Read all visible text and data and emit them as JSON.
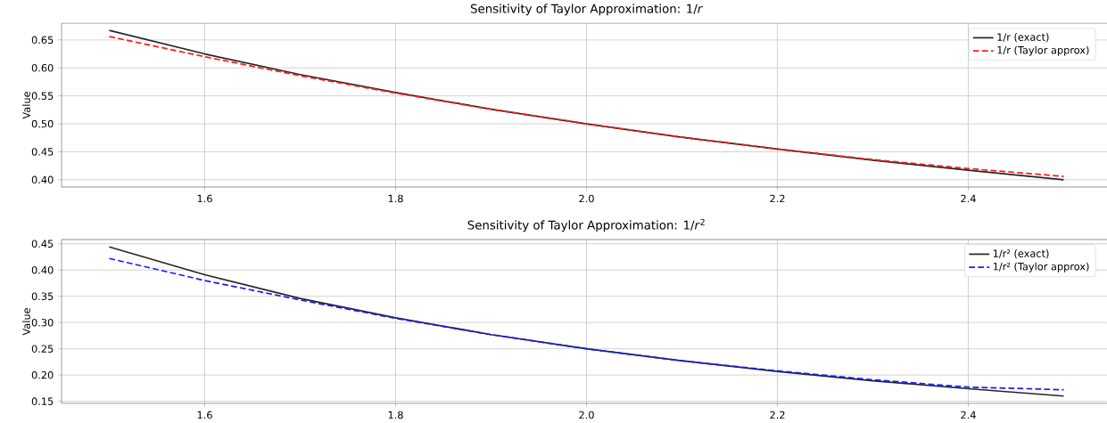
{
  "chart_data": [
    {
      "type": "line",
      "title": "Sensitivity of Taylor Approximation: 1/*r*",
      "ylabel": "Value",
      "x": [
        1.5,
        1.6,
        1.7,
        1.8,
        1.9,
        2.0,
        2.1,
        2.2,
        2.3,
        2.4,
        2.5
      ],
      "series": [
        {
          "name": "1/r (exact)",
          "color": "#262626",
          "line_style": "solid",
          "values": [
            0.667,
            0.625,
            0.588,
            0.556,
            0.526,
            0.5,
            0.476,
            0.455,
            0.435,
            0.417,
            0.4
          ]
        },
        {
          "name": "1/r (Taylor approx)",
          "color": "#ff1a1a",
          "line_style": "dashed",
          "values": [
            0.656,
            0.62,
            0.586,
            0.555,
            0.526,
            0.5,
            0.476,
            0.455,
            0.436,
            0.42,
            0.406
          ]
        }
      ],
      "xlim": [
        1.45,
        2.55
      ],
      "ylim": [
        0.387,
        0.68
      ],
      "xticks": [
        1.6,
        1.8,
        {
          "value": 2.0,
          "label": "2.0"
        },
        2.2,
        2.4
      ],
      "yticks": [
        {
          "value": 0.4,
          "label": "0.40"
        },
        0.45,
        {
          "value": 0.5,
          "label": "0.50"
        },
        0.55,
        {
          "value": 0.6,
          "label": "0.60"
        },
        0.65
      ],
      "grid": true,
      "legend": "top right"
    },
    {
      "type": "line",
      "title": "Sensitivity of Taylor Approximation: 1/*r*$^{2}$",
      "ylabel": "Value",
      "x": [
        1.5,
        1.6,
        1.7,
        1.8,
        1.9,
        2.0,
        2.1,
        2.2,
        2.3,
        2.4,
        2.5
      ],
      "series": [
        {
          "name": "1/r² (exact)",
          "color": "#262626",
          "line_style": "solid",
          "values": [
            0.444,
            0.391,
            0.346,
            0.309,
            0.277,
            0.25,
            0.227,
            0.207,
            0.189,
            0.174,
            0.16
          ]
        },
        {
          "name": "1/r² (Taylor approx)",
          "color": "#1a1aff",
          "line_style": "dashed",
          "values": [
            0.422,
            0.38,
            0.343,
            0.308,
            0.277,
            0.25,
            0.227,
            0.208,
            0.191,
            0.177,
            0.172
          ]
        }
      ],
      "xlim": [
        1.45,
        2.55
      ],
      "ylim": [
        0.146,
        0.458
      ],
      "xticks": [
        1.6,
        1.8,
        {
          "value": 2.0,
          "label": "2.0"
        },
        2.2,
        2.4
      ],
      "yticks": [
        0.15,
        {
          "value": 0.2,
          "label": "0.20"
        },
        0.25,
        {
          "value": 0.3,
          "label": "0.30"
        },
        0.35,
        {
          "value": 0.4,
          "label": "0.40"
        },
        0.45
      ],
      "grid": true,
      "legend": "top right"
    }
  ]
}
